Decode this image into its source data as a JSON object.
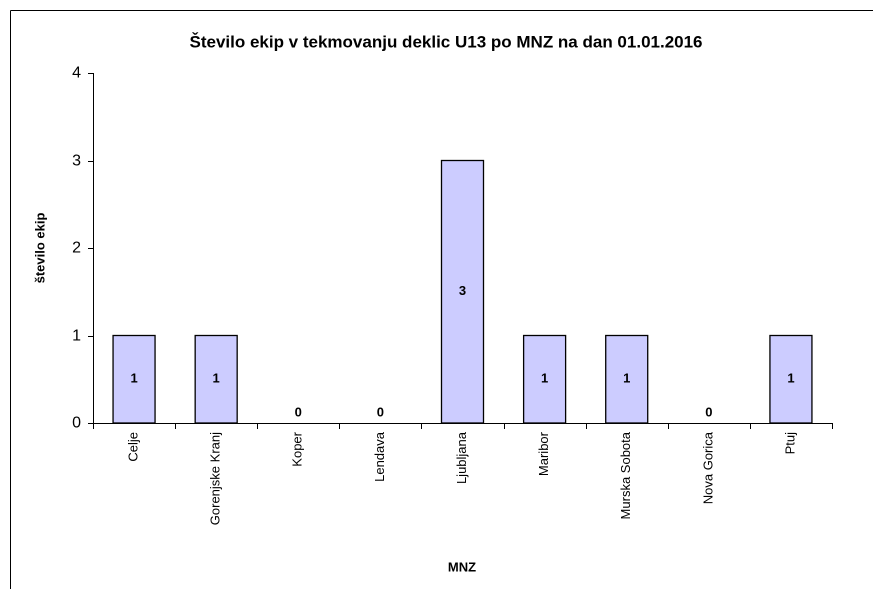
{
  "chart_data": {
    "type": "bar",
    "title": "Število ekip v tekmovanju deklic U13 po MNZ na dan 01.01.2016",
    "x_label": "MNZ",
    "y_label": "število ekip",
    "categories": [
      "Celje",
      "Gorenjske Kranj",
      "Koper",
      "Lendava",
      "Ljubljana",
      "Maribor",
      "Murska Sobota",
      "Nova Gorica",
      "Ptuj"
    ],
    "values": [
      1,
      1,
      0,
      0,
      3,
      1,
      1,
      0,
      1
    ],
    "color": "#ccccff",
    "ylim": [
      0,
      4
    ],
    "yticks": [
      0,
      1,
      2,
      3,
      4
    ],
    "grid": false
  }
}
